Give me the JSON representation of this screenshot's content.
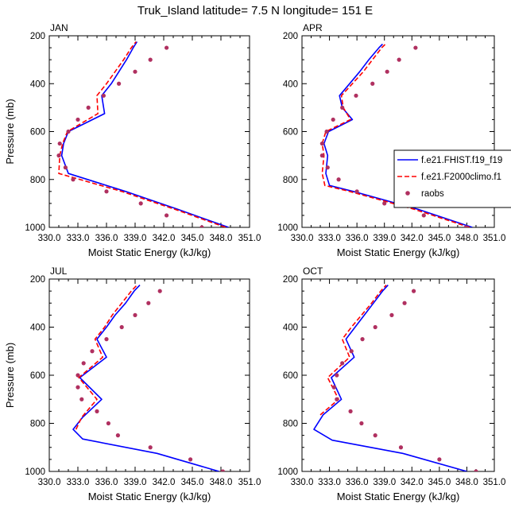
{
  "figure": {
    "title": "Truk_Island  latitude= 7.5 N longitude= 151 E"
  },
  "legend": {
    "entries": [
      {
        "label": "f.e21.FHIST.f19_f19",
        "color": "#0000ff",
        "style": "solid"
      },
      {
        "label": "f.e21.F2000climo.f1",
        "color": "#ff0000",
        "style": "dashed"
      },
      {
        "label": "raobs",
        "color": "#b03060",
        "style": "marker"
      }
    ],
    "placement": "right of APR panel"
  },
  "colors": {
    "model_hist": "#0000ff",
    "model_climo": "#ff0000",
    "raobs": "#b03060",
    "axis": "#000000"
  },
  "chart_data": [
    {
      "type": "line",
      "title": "JAN",
      "xlabel": "Moist Static Energy (kJ/kg)",
      "ylabel": "Pressure (mb)",
      "xlim": [
        330,
        351
      ],
      "ylim": [
        1000,
        200
      ],
      "xticks": [
        330.0,
        333.0,
        336.0,
        339.0,
        342.0,
        345.0,
        348.0,
        351.0
      ],
      "xtick_labels": [
        "330.0",
        "333.0",
        "336.0",
        "339.0",
        "342.0",
        "345.0",
        "348.0",
        "351.0"
      ],
      "yticks": [
        200,
        400,
        600,
        800,
        1000
      ],
      "ytick_labels": [
        "200",
        "400",
        "600",
        "800",
        "1000"
      ],
      "series": [
        {
          "name": "f.e21.FHIST.f19_f19",
          "style": "solid",
          "color": "#0000ff",
          "p": [
            1000,
            925,
            850,
            775,
            700,
            650,
            600,
            525,
            450,
            400,
            350,
            300,
            250,
            225
          ],
          "mse": [
            348.8,
            343.5,
            338.0,
            332.0,
            331.3,
            331.5,
            332.0,
            335.8,
            335.5,
            336.5,
            337.3,
            338.1,
            338.8,
            339.2
          ]
        },
        {
          "name": "f.e21.F2000climo.f1",
          "style": "dashed",
          "color": "#ff0000",
          "p": [
            1000,
            925,
            850,
            775,
            700,
            650,
            600,
            525,
            450,
            400,
            350,
            300,
            250,
            225
          ],
          "mse": [
            348.5,
            343.2,
            337.6,
            331.0,
            331.1,
            331.4,
            331.9,
            335.1,
            335.0,
            336.0,
            336.9,
            337.8,
            338.6,
            339.1
          ]
        },
        {
          "name": "raobs",
          "style": "marker",
          "color": "#b03060",
          "p": [
            1000,
            950,
            900,
            850,
            800,
            750,
            700,
            650,
            600,
            550,
            500,
            450,
            400,
            350,
            300,
            250
          ],
          "mse": [
            346.0,
            342.3,
            339.6,
            336.0,
            332.5,
            331.7,
            331.0,
            331.1,
            332.0,
            333.0,
            334.1,
            335.7,
            337.3,
            339.0,
            340.6,
            342.3
          ]
        }
      ]
    },
    {
      "type": "line",
      "title": "APR",
      "xlabel": "Moist Static Energy (kJ/kg)",
      "ylabel": "",
      "xlim": [
        330,
        351
      ],
      "ylim": [
        1000,
        200
      ],
      "xticks": [
        330.0,
        333.0,
        336.0,
        339.0,
        342.0,
        345.0,
        348.0,
        351.0
      ],
      "xtick_labels": [
        "330.0",
        "333.0",
        "336.0",
        "339.0",
        "342.0",
        "345.0",
        "348.0",
        "351.0"
      ],
      "yticks": [
        200,
        400,
        600,
        800,
        1000
      ],
      "ytick_labels": [
        "200",
        "400",
        "600",
        "800",
        "1000"
      ],
      "series": [
        {
          "name": "f.e21.FHIST.f19_f19",
          "style": "solid",
          "color": "#0000ff",
          "p": [
            1000,
            925,
            850,
            825,
            775,
            700,
            650,
            600,
            550,
            500,
            450,
            400,
            350,
            300,
            250,
            235
          ],
          "mse": [
            348.6,
            342.7,
            335.6,
            333.0,
            332.6,
            332.8,
            332.4,
            332.9,
            335.5,
            334.4,
            334.1,
            335.2,
            336.3,
            337.3,
            338.4,
            338.8
          ]
        },
        {
          "name": "f.e21.F2000climo.f1",
          "style": "dashed",
          "color": "#ff0000",
          "p": [
            1000,
            925,
            850,
            825,
            775,
            700,
            650,
            600,
            550,
            500,
            450,
            400,
            350,
            300,
            250,
            235
          ],
          "mse": [
            348.3,
            342.3,
            335.2,
            332.5,
            332.2,
            332.4,
            332.2,
            332.6,
            335.3,
            334.5,
            334.3,
            335.5,
            336.7,
            337.7,
            338.7,
            339.1
          ]
        },
        {
          "name": "raobs",
          "style": "marker",
          "color": "#b03060",
          "p": [
            1000,
            950,
            900,
            850,
            800,
            750,
            700,
            650,
            600,
            550,
            500,
            450,
            400,
            350,
            300,
            250
          ],
          "mse": [
            347.9,
            343.3,
            339.0,
            336.0,
            334.0,
            332.8,
            332.2,
            332.2,
            332.7,
            333.4,
            334.4,
            335.9,
            337.7,
            339.3,
            340.6,
            342.4
          ]
        }
      ]
    },
    {
      "type": "line",
      "title": "JUL",
      "xlabel": "Moist Static Energy (kJ/kg)",
      "ylabel": "Pressure (mb)",
      "xlim": [
        330,
        351
      ],
      "ylim": [
        1000,
        200
      ],
      "xticks": [
        330.0,
        333.0,
        336.0,
        339.0,
        342.0,
        345.0,
        348.0,
        351.0
      ],
      "xtick_labels": [
        "330.0",
        "333.0",
        "336.0",
        "339.0",
        "342.0",
        "345.0",
        "348.0",
        "351.0"
      ],
      "yticks": [
        200,
        400,
        600,
        800,
        1000
      ],
      "ytick_labels": [
        "200",
        "400",
        "600",
        "800",
        "1000"
      ],
      "series": [
        {
          "name": "f.e21.FHIST.f19_f19",
          "style": "solid",
          "color": "#0000ff",
          "p": [
            1000,
            925,
            865,
            825,
            775,
            700,
            610,
            525,
            450,
            400,
            350,
            300,
            250,
            225
          ],
          "mse": [
            347.8,
            341.3,
            333.5,
            332.5,
            333.5,
            335.5,
            333.2,
            336.0,
            335.0,
            336.0,
            336.9,
            338.0,
            338.9,
            339.5
          ]
        },
        {
          "name": "f.e21.F2000climo.f1",
          "style": "dashed",
          "color": "#ff0000",
          "p": [
            825,
            775,
            700,
            610,
            525,
            450,
            400,
            350,
            300,
            250,
            225
          ],
          "mse": [
            332.8,
            333.4,
            335.0,
            333.1,
            335.6,
            334.8,
            335.8,
            336.6,
            337.6,
            338.6,
            339.2
          ]
        },
        {
          "name": "raobs",
          "style": "marker",
          "color": "#b03060",
          "p": [
            1000,
            950,
            900,
            850,
            800,
            750,
            700,
            650,
            600,
            550,
            500,
            450,
            400,
            350,
            300,
            250
          ],
          "mse": [
            348.2,
            344.8,
            340.6,
            337.2,
            336.2,
            335.0,
            333.4,
            333.0,
            333.0,
            333.6,
            334.5,
            336.0,
            337.6,
            339.0,
            340.4,
            341.6
          ]
        }
      ]
    },
    {
      "type": "line",
      "title": "OCT",
      "xlabel": "Moist Static Energy (kJ/kg)",
      "ylabel": "",
      "xlim": [
        330,
        351
      ],
      "ylim": [
        1000,
        200
      ],
      "xticks": [
        330.0,
        333.0,
        336.0,
        339.0,
        342.0,
        345.0,
        348.0,
        351.0
      ],
      "xtick_labels": [
        "330.0",
        "333.0",
        "336.0",
        "339.0",
        "342.0",
        "345.0",
        "348.0",
        "351.0"
      ],
      "yticks": [
        200,
        400,
        600,
        800,
        1000
      ],
      "ytick_labels": [
        "200",
        "400",
        "600",
        "800",
        "1000"
      ],
      "series": [
        {
          "name": "f.e21.FHIST.f19_f19",
          "style": "solid",
          "color": "#0000ff",
          "p": [
            1000,
            925,
            870,
            825,
            765,
            700,
            610,
            525,
            450,
            400,
            350,
            300,
            250,
            225
          ],
          "mse": [
            348.0,
            341.0,
            333.3,
            331.3,
            332.3,
            334.3,
            333.2,
            335.7,
            334.8,
            335.8,
            336.8,
            337.8,
            338.8,
            339.4
          ]
        },
        {
          "name": "f.e21.F2000climo.f1",
          "style": "dashed",
          "color": "#ff0000",
          "p": [
            765,
            700,
            610,
            525,
            450,
            400,
            350,
            300,
            250,
            225
          ],
          "mse": [
            332.0,
            334.0,
            332.8,
            335.2,
            334.4,
            335.4,
            336.5,
            337.6,
            338.6,
            339.2
          ]
        },
        {
          "name": "raobs",
          "style": "marker",
          "color": "#b03060",
          "p": [
            1000,
            950,
            900,
            850,
            800,
            750,
            700,
            650,
            600,
            550,
            500,
            450,
            400,
            350,
            300,
            250
          ],
          "mse": [
            349.0,
            345.0,
            340.8,
            338.0,
            336.5,
            335.3,
            333.8,
            333.5,
            333.8,
            334.4,
            335.4,
            336.6,
            338.0,
            339.8,
            341.2,
            342.2
          ]
        }
      ]
    }
  ]
}
